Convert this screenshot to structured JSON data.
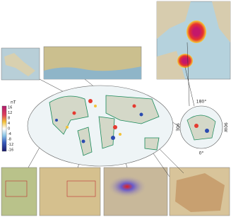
{
  "colorbar": {
    "unit": "nT",
    "ticks": [
      "16",
      "12",
      "8",
      "4",
      "0",
      "-4",
      "-8",
      "-12",
      "-16"
    ]
  },
  "polar": {
    "top": "180°",
    "bottom": "0°",
    "left": "90E",
    "right": "90W"
  }
}
